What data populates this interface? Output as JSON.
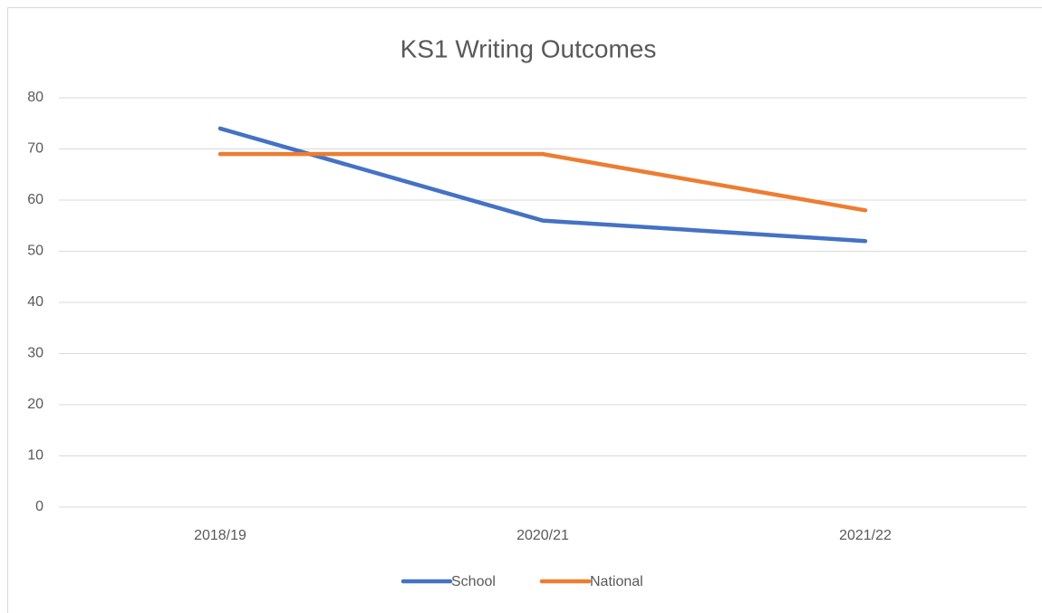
{
  "chart_data": {
    "type": "line",
    "title": "KS1 Writing Outcomes",
    "categories": [
      "2018/19",
      "2020/21",
      "2021/22"
    ],
    "series": [
      {
        "name": "School",
        "color": "#4472c4",
        "values": [
          74,
          56,
          52
        ]
      },
      {
        "name": "National",
        "color": "#ed7d31",
        "values": [
          69,
          69,
          58
        ]
      }
    ],
    "ylim": [
      0,
      80
    ],
    "yticks": [
      0,
      10,
      20,
      30,
      40,
      50,
      60,
      70,
      80
    ],
    "grid": true,
    "legend": "bottom"
  }
}
